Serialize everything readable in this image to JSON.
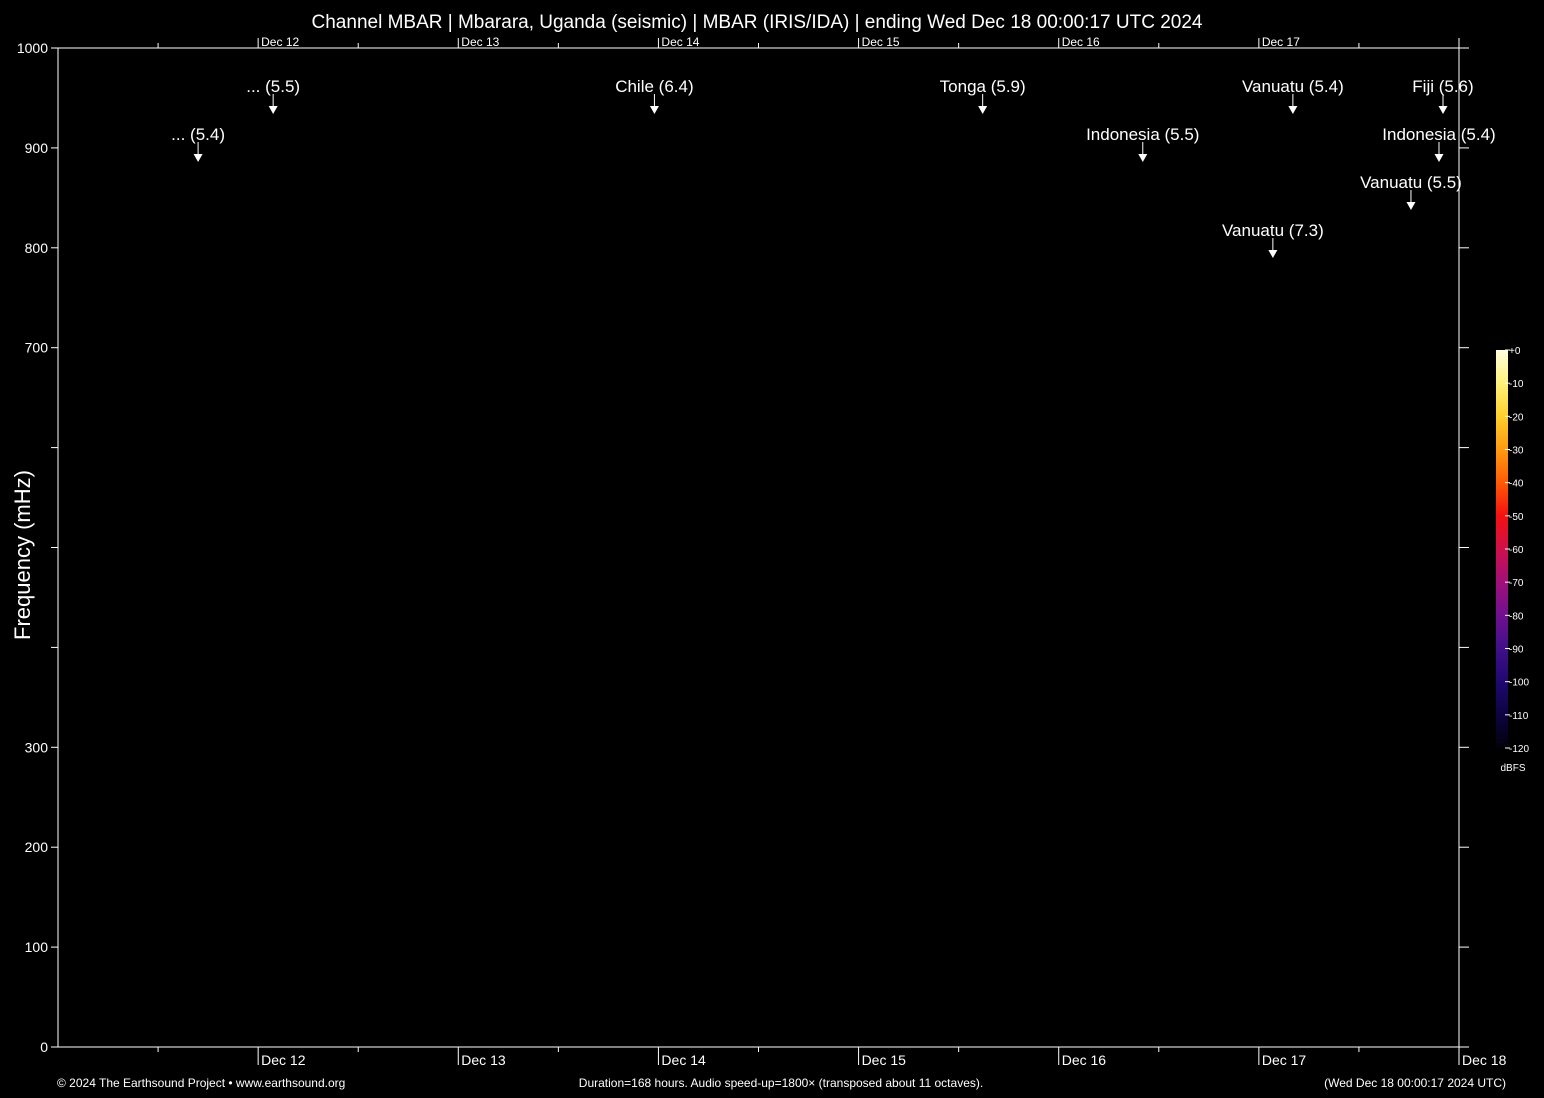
{
  "chart_data": {
    "type": "heatmap",
    "title": "Channel MBAR | Mbarara, Uganda (seismic) | MBAR (IRIS/IDA) | ending Wed Dec 18 00:00:17 UTC 2024",
    "ylabel": "Frequency (mHz)",
    "ylim": [
      0,
      1000
    ],
    "y_ticks": [
      {
        "value": 0,
        "label": "0"
      },
      {
        "value": 100,
        "label": "100"
      },
      {
        "value": 200,
        "label": "200"
      },
      {
        "value": 300,
        "label": "300"
      },
      {
        "value": 400,
        "label": ""
      },
      {
        "value": 500,
        "label": ""
      },
      {
        "value": 600,
        "label": ""
      },
      {
        "value": 700,
        "label": "700"
      },
      {
        "value": 800,
        "label": "800"
      },
      {
        "value": 900,
        "label": "900"
      },
      {
        "value": 1000,
        "label": "1000"
      }
    ],
    "x_range_days": [
      0,
      7
    ],
    "x_day_ticks": [
      {
        "day": 1,
        "label": "Dec 12"
      },
      {
        "day": 2,
        "label": "Dec 13"
      },
      {
        "day": 3,
        "label": "Dec 14"
      },
      {
        "day": 4,
        "label": "Dec 15"
      },
      {
        "day": 5,
        "label": "Dec 16"
      },
      {
        "day": 6,
        "label": "Dec 17"
      },
      {
        "day": 7,
        "label": "Dec 18"
      }
    ],
    "events": [
      {
        "label": "... (5.4)",
        "day": 0.7,
        "level": 2
      },
      {
        "label": "... (5.5)",
        "day": 1.075,
        "level": 1
      },
      {
        "label": "Chile (6.4)",
        "day": 2.98,
        "level": 1
      },
      {
        "label": "Tonga (5.9)",
        "day": 4.62,
        "level": 1
      },
      {
        "label": "Indonesia (5.5)",
        "day": 5.42,
        "level": 2
      },
      {
        "label": "Vanuatu (7.3)",
        "day": 6.07,
        "level": 4
      },
      {
        "label": "Vanuatu (5.4)",
        "day": 6.17,
        "level": 1
      },
      {
        "label": "Vanuatu (5.5)",
        "day": 6.76,
        "level": 3
      },
      {
        "label": "Indonesia (5.4)",
        "day": 6.9,
        "level": 2
      },
      {
        "label": "Fiji (5.6)",
        "day": 6.92,
        "level": 1
      }
    ],
    "colorbar": {
      "unit": "dBFS",
      "ticks": [
        "+0",
        "-10",
        "-20",
        "-30",
        "-40",
        "-50",
        "-60",
        "-70",
        "-80",
        "-90",
        "-100",
        "-110",
        "-120"
      ],
      "colors": [
        "#fffde0",
        "#fff27a",
        "#ffcf2b",
        "#ff9a10",
        "#ff5a05",
        "#f51010",
        "#d0104a",
        "#a0107a",
        "#701090",
        "#40108a",
        "#200870",
        "#0c0440",
        "#02010a"
      ]
    },
    "footer": {
      "left": "© 2024 The Earthsound Project • www.earthsound.org",
      "center": "Duration=168 hours. Audio speed-up=1800× (transposed about 11 octaves).",
      "right": "(Wed Dec 18 00:00:17 2024 UTC)"
    }
  }
}
